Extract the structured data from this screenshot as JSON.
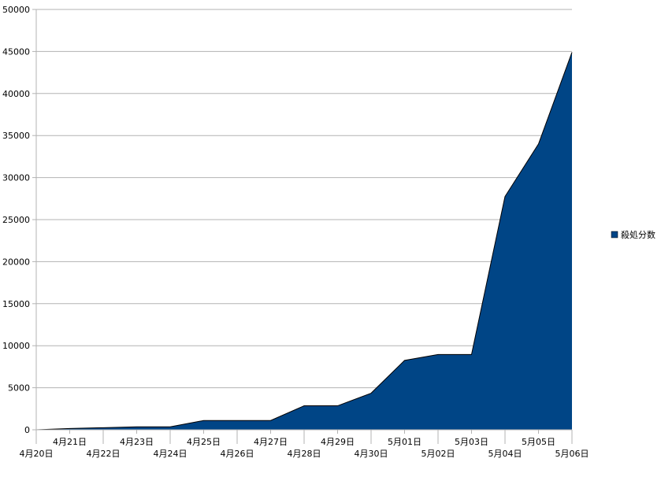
{
  "chart_data": {
    "type": "area",
    "categories": [
      "4月20日",
      "4月21日",
      "4月22日",
      "4月23日",
      "4月24日",
      "4月25日",
      "4月26日",
      "4月27日",
      "4月28日",
      "4月29日",
      "4月30日",
      "5月01日",
      "5月02日",
      "5月03日",
      "5月04日",
      "5月05日",
      "5月06日"
    ],
    "series": [
      {
        "name": "殺処分数",
        "values": [
          0,
          150,
          250,
          350,
          350,
          1100,
          1100,
          1100,
          2850,
          2850,
          4350,
          8250,
          8950,
          8950,
          27750,
          34000,
          44900
        ]
      }
    ],
    "ylim": [
      0,
      50000
    ],
    "yticks": [
      0,
      5000,
      10000,
      15000,
      20000,
      25000,
      30000,
      35000,
      40000,
      45000,
      50000
    ],
    "grid": true,
    "legend_position": "right",
    "colors": {
      "fill": "#004586",
      "stroke": "#000000",
      "grid": "#b3b3b3",
      "axis": "#b3b3b3"
    }
  }
}
